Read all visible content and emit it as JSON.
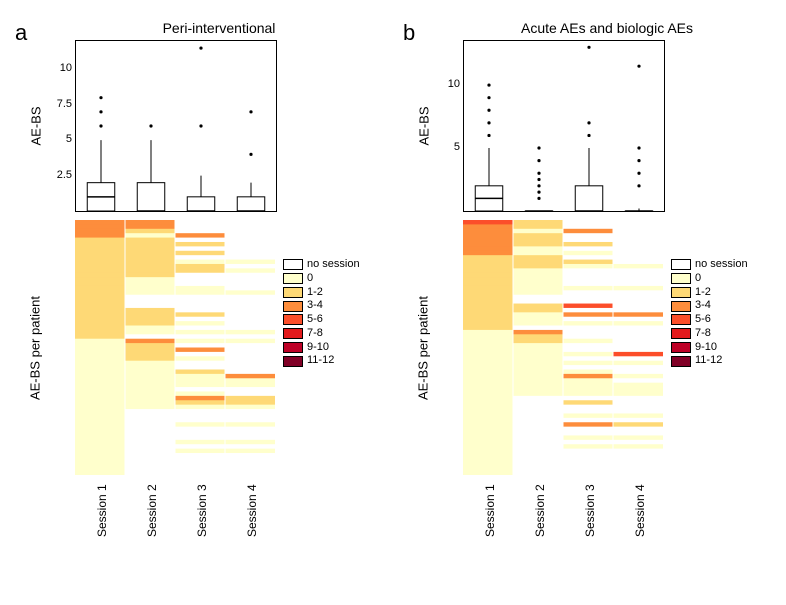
{
  "background_color": "#ffffff",
  "panel_label_fontsize": 22,
  "title_fontsize": 14,
  "axis_fontsize": 13,
  "tick_fontsize": 11,
  "legend_fontsize": 11,
  "sessions": [
    "Session 1",
    "Session 2",
    "Session 3",
    "Session 4"
  ],
  "legend_items": [
    {
      "label": "no session",
      "color": "#ffffff"
    },
    {
      "label": "0",
      "color": "#ffffcc"
    },
    {
      "label": "1-2",
      "color": "#fed976"
    },
    {
      "label": "3-4",
      "color": "#fd8d3c"
    },
    {
      "label": "5-6",
      "color": "#fc4e2a"
    },
    {
      "label": "7-8",
      "color": "#e31a1c"
    },
    {
      "label": "9-10",
      "color": "#bd0026"
    },
    {
      "label": "11-12",
      "color": "#800026"
    }
  ],
  "panel_a": {
    "letter": "a",
    "title": "Peri-interventional",
    "y_label_box": "AE-BS",
    "y_label_heat": "AE-BS per patient",
    "boxplot": {
      "ylim": [
        0,
        12
      ],
      "yticks": [
        2.5,
        5,
        7.5,
        10
      ],
      "ytick_labels": [
        "2.5",
        "5",
        "7.5",
        "10"
      ],
      "box_stroke": "#000000",
      "box_fill": "#ffffff",
      "line_width": 1,
      "series": [
        {
          "q1": 0,
          "median": 1,
          "q3": 2,
          "whisker_lo": 0,
          "whisker_hi": 5,
          "outliers": [
            6,
            7,
            8
          ]
        },
        {
          "q1": 0,
          "median": 0,
          "q3": 2,
          "whisker_lo": 0,
          "whisker_hi": 5,
          "outliers": [
            6
          ]
        },
        {
          "q1": 0,
          "median": 0,
          "q3": 1,
          "whisker_lo": 0,
          "whisker_hi": 2.5,
          "outliers": [
            6,
            11.5
          ]
        },
        {
          "q1": 0,
          "median": 0,
          "q3": 1,
          "whisker_lo": 0,
          "whisker_hi": 2,
          "outliers": [
            4,
            7
          ]
        }
      ]
    },
    "heatmap": {
      "n_rows": 58,
      "rows": [
        [
          3,
          3,
          null,
          null
        ],
        [
          3,
          3,
          null,
          null
        ],
        [
          3,
          1,
          null,
          null
        ],
        [
          3,
          0,
          3,
          null
        ],
        [
          2,
          2,
          null,
          null
        ],
        [
          2,
          2,
          1,
          null
        ],
        [
          2,
          2,
          null,
          null
        ],
        [
          2,
          2,
          2,
          null
        ],
        [
          2,
          2,
          null,
          null
        ],
        [
          2,
          1,
          0,
          0
        ],
        [
          2,
          1,
          1,
          null
        ],
        [
          2,
          1,
          1,
          0
        ],
        [
          2,
          1,
          null,
          null
        ],
        [
          2,
          0,
          null,
          null
        ],
        [
          2,
          0,
          null,
          null
        ],
        [
          2,
          0,
          0,
          null
        ],
        [
          2,
          0,
          0,
          0
        ],
        [
          2,
          null,
          null,
          null
        ],
        [
          2,
          null,
          null,
          null
        ],
        [
          2,
          null,
          null,
          null
        ],
        [
          1,
          2,
          null,
          null
        ],
        [
          1,
          2,
          1,
          null
        ],
        [
          1,
          1,
          null,
          null
        ],
        [
          1,
          1,
          0,
          null
        ],
        [
          1,
          0,
          null,
          null
        ],
        [
          1,
          0,
          0,
          0
        ],
        [
          1,
          null,
          null,
          null
        ],
        [
          0,
          3,
          0,
          0
        ],
        [
          0,
          2,
          null,
          null
        ],
        [
          0,
          1,
          4,
          null
        ],
        [
          0,
          1,
          null,
          null
        ],
        [
          0,
          1,
          0,
          null
        ],
        [
          0,
          0,
          null,
          null
        ],
        [
          0,
          0,
          null,
          null
        ],
        [
          0,
          0,
          2,
          null
        ],
        [
          0,
          0,
          0,
          3
        ],
        [
          0,
          0,
          0,
          0
        ],
        [
          0,
          0,
          0,
          0
        ],
        [
          0,
          0,
          null,
          null
        ],
        [
          0,
          0,
          0,
          null
        ],
        [
          0,
          0,
          4,
          2
        ],
        [
          0,
          0,
          2,
          1
        ],
        [
          0,
          0,
          0,
          0
        ],
        [
          0,
          null,
          null,
          null
        ],
        [
          0,
          null,
          null,
          null
        ],
        [
          0,
          null,
          null,
          null
        ],
        [
          0,
          null,
          0,
          0
        ],
        [
          0,
          null,
          null,
          null
        ],
        [
          0,
          null,
          null,
          null
        ],
        [
          0,
          null,
          null,
          null
        ],
        [
          0,
          null,
          0,
          0
        ],
        [
          0,
          null,
          null,
          null
        ],
        [
          0,
          null,
          0,
          0
        ],
        [
          0,
          null,
          null,
          null
        ],
        [
          0,
          null,
          null,
          null
        ],
        [
          0,
          null,
          null,
          null
        ],
        [
          0,
          null,
          null,
          null
        ],
        [
          0,
          null,
          null,
          null
        ]
      ]
    }
  },
  "panel_b": {
    "letter": "b",
    "title": "Acute AEs and biologic AEs",
    "y_label_box": "AE-BS",
    "y_label_heat": "AE-BS per patient",
    "boxplot": {
      "ylim": [
        0,
        13.5
      ],
      "yticks": [
        5,
        10
      ],
      "ytick_labels": [
        "5",
        "10"
      ],
      "box_stroke": "#000000",
      "box_fill": "#ffffff",
      "line_width": 1,
      "series": [
        {
          "q1": 0,
          "median": 1,
          "q3": 2,
          "whisker_lo": 0,
          "whisker_hi": 5,
          "outliers": [
            6,
            7,
            8,
            9,
            10
          ]
        },
        {
          "q1": 0,
          "median": 0,
          "q3": 0,
          "whisker_lo": 0,
          "whisker_hi": 0,
          "outliers": [
            1,
            1.5,
            2,
            2.5,
            3,
            4,
            5
          ]
        },
        {
          "q1": 0,
          "median": 0,
          "q3": 2,
          "whisker_lo": 0,
          "whisker_hi": 5,
          "outliers": [
            6,
            7,
            13
          ]
        },
        {
          "q1": 0,
          "median": 0,
          "q3": 0,
          "whisker_lo": 0,
          "whisker_hi": 0.2,
          "outliers": [
            2,
            3,
            4,
            5,
            11.5
          ]
        }
      ]
    },
    "heatmap": {
      "n_rows": 58,
      "rows": [
        [
          5,
          2,
          null,
          null
        ],
        [
          4,
          1,
          null,
          null
        ],
        [
          4,
          0,
          4,
          null
        ],
        [
          3,
          2,
          null,
          null
        ],
        [
          3,
          1,
          null,
          null
        ],
        [
          3,
          1,
          2,
          null
        ],
        [
          3,
          0,
          null,
          null
        ],
        [
          3,
          0,
          0,
          null
        ],
        [
          2,
          2,
          null,
          null
        ],
        [
          2,
          1,
          1,
          null
        ],
        [
          2,
          1,
          0,
          0
        ],
        [
          2,
          0,
          null,
          null
        ],
        [
          2,
          0,
          null,
          null
        ],
        [
          2,
          0,
          null,
          null
        ],
        [
          2,
          0,
          null,
          null
        ],
        [
          2,
          0,
          0,
          0
        ],
        [
          2,
          0,
          null,
          null
        ],
        [
          2,
          null,
          null,
          null
        ],
        [
          2,
          null,
          null,
          null
        ],
        [
          1,
          1,
          6,
          null
        ],
        [
          1,
          1,
          null,
          null
        ],
        [
          1,
          0,
          4,
          4
        ],
        [
          1,
          0,
          null,
          null
        ],
        [
          1,
          0,
          0,
          0
        ],
        [
          1,
          null,
          null,
          null
        ],
        [
          0,
          3,
          null,
          null
        ],
        [
          0,
          1,
          null,
          null
        ],
        [
          0,
          1,
          0,
          null
        ],
        [
          0,
          0,
          null,
          null
        ],
        [
          0,
          0,
          null,
          null
        ],
        [
          0,
          0,
          0,
          6
        ],
        [
          0,
          0,
          null,
          null
        ],
        [
          0,
          0,
          0,
          0
        ],
        [
          0,
          0,
          null,
          null
        ],
        [
          0,
          0,
          0,
          null
        ],
        [
          0,
          0,
          3,
          0
        ],
        [
          0,
          0,
          0,
          null
        ],
        [
          0,
          0,
          0,
          0
        ],
        [
          0,
          0,
          0,
          0
        ],
        [
          0,
          0,
          0,
          0
        ],
        [
          0,
          null,
          null,
          null
        ],
        [
          0,
          null,
          2,
          null
        ],
        [
          0,
          null,
          null,
          null
        ],
        [
          0,
          null,
          null,
          null
        ],
        [
          0,
          null,
          0,
          0
        ],
        [
          0,
          null,
          null,
          null
        ],
        [
          0,
          null,
          3,
          2
        ],
        [
          0,
          null,
          null,
          null
        ],
        [
          0,
          null,
          null,
          null
        ],
        [
          0,
          null,
          0,
          0
        ],
        [
          0,
          null,
          null,
          null
        ],
        [
          0,
          null,
          0,
          0
        ],
        [
          0,
          null,
          null,
          null
        ],
        [
          0,
          null,
          null,
          null
        ],
        [
          0,
          null,
          null,
          null
        ],
        [
          0,
          null,
          null,
          null
        ],
        [
          0,
          null,
          null,
          null
        ],
        [
          0,
          null,
          null,
          null
        ]
      ]
    }
  }
}
